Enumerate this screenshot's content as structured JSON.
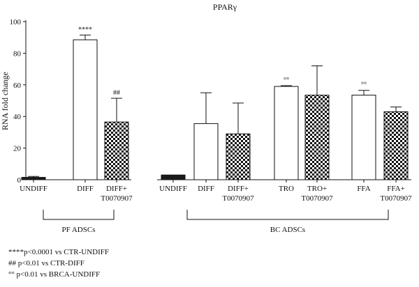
{
  "chart_data": {
    "type": "bar",
    "title": "PPARγ",
    "ylabel": "RNA fold change",
    "xlabel": "",
    "ylim": [
      0,
      100
    ],
    "y_ticks": [
      "0",
      "20",
      "40",
      "60",
      "80",
      "100"
    ],
    "grid": false,
    "bars": [
      {
        "label": "UNDIFF",
        "value": 1.5,
        "error": 0.6,
        "fill": "black",
        "annotation": ""
      },
      {
        "label": "DIFF",
        "value": 88.5,
        "error": 3.0,
        "fill": "white",
        "annotation": "****"
      },
      {
        "label": "DIFF+\nT0070907",
        "value": 36.5,
        "error": 15.0,
        "fill": "checker",
        "annotation": "##"
      },
      {
        "label": "UNDIFF",
        "value": 3.0,
        "error": 0.0,
        "fill": "black",
        "annotation": ""
      },
      {
        "label": "DIFF",
        "value": 35.5,
        "error": 19.5,
        "fill": "white",
        "annotation": ""
      },
      {
        "label": "DIFF+\nT0070907",
        "value": 29.0,
        "error": 19.5,
        "fill": "checker",
        "annotation": ""
      },
      {
        "label": "TRO",
        "value": 59.0,
        "error": 0.5,
        "fill": "white",
        "annotation": "°°"
      },
      {
        "label": "TRO+\nT0070907",
        "value": 53.5,
        "error": 18.5,
        "fill": "checker",
        "annotation": ""
      },
      {
        "label": "FFA",
        "value": 53.5,
        "error": 3.0,
        "fill": "white",
        "annotation": "°°"
      },
      {
        "label": "FFA+\nT0070907",
        "value": 43.0,
        "error": 3.0,
        "fill": "checker",
        "annotation": ""
      }
    ],
    "groups": [
      {
        "label": "PF ADSCs",
        "from": 0,
        "to": 2
      },
      {
        "label": "BC ADSCs",
        "from": 3,
        "to": 9
      }
    ],
    "footnotes": [
      "****p<0.0001 vs CTR-UNDIFF",
      "## p<0.01 vs CTR-DIFF",
      "°°  p<0.01 vs BRCA-UNDIFF"
    ],
    "colors": {
      "bar_fill_dark": "#1a1a1a",
      "bar_stroke": "#111111",
      "checker_dark": "#111111",
      "background": "#ffffff"
    }
  }
}
